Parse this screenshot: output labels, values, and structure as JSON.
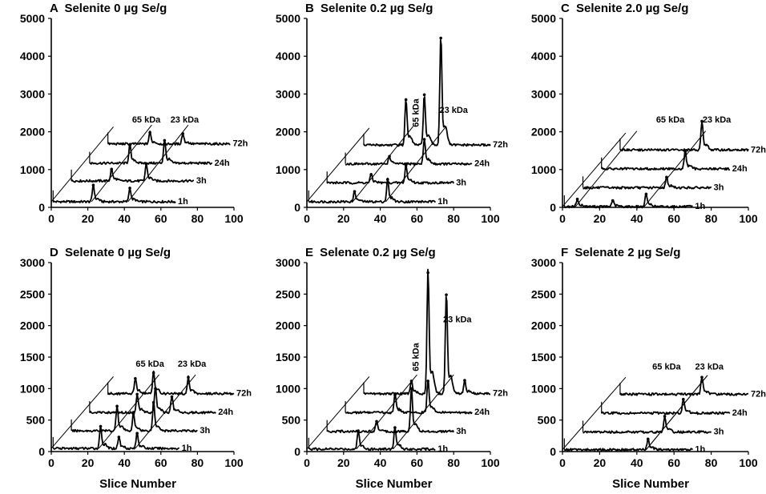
{
  "figure": {
    "x_axis_title": "Slice Number"
  },
  "chart_data": [
    {
      "type": "line",
      "id": "A",
      "letter": "A",
      "title": "Selenite 0 µg Se/g",
      "xlim": [
        0,
        100
      ],
      "ylim": [
        0,
        5000
      ],
      "xticks": [
        0,
        20,
        40,
        60,
        80,
        100
      ],
      "yticks": [
        0,
        1000,
        2000,
        3000,
        4000,
        5000
      ],
      "xlabel": "",
      "ylabel": "",
      "series": [
        {
          "name": "1h",
          "offset_x": 0,
          "baseline": 150,
          "start": 1,
          "end": 68,
          "peaks": [
            {
              "x": 23,
              "y": 590
            },
            {
              "x": 43,
              "y": 510
            }
          ]
        },
        {
          "name": "3h",
          "offset_x": 10,
          "baseline": 700,
          "start": 11,
          "end": 78,
          "peaks": [
            {
              "x": 33,
              "y": 1010
            },
            {
              "x": 52,
              "y": 1150
            }
          ]
        },
        {
          "name": "24h",
          "offset_x": 20,
          "baseline": 1170,
          "start": 21,
          "end": 88,
          "peaks": [
            {
              "x": 43,
              "y": 1650
            },
            {
              "x": 62,
              "y": 1770
            }
          ]
        },
        {
          "name": "72h",
          "offset_x": 30,
          "baseline": 1680,
          "start": 31,
          "end": 98,
          "peaks": [
            {
              "x": 54,
              "y": 1980
            },
            {
              "x": 72,
              "y": 1950
            }
          ]
        }
      ],
      "annotations": [
        {
          "text": "65 kDa",
          "x": 52,
          "y": 2250
        },
        {
          "text": "23 kDa",
          "x": 73,
          "y": 2250
        }
      ]
    },
    {
      "type": "line",
      "id": "B",
      "letter": "B",
      "title": "Selenite 0.2 µg Se/g",
      "xlim": [
        0,
        100
      ],
      "ylim": [
        0,
        5000
      ],
      "xticks": [
        0,
        20,
        40,
        60,
        80,
        100
      ],
      "yticks": [
        0,
        1000,
        2000,
        3000,
        4000,
        5000
      ],
      "xlabel": "",
      "ylabel": "",
      "series": [
        {
          "name": "1h",
          "offset_x": 0,
          "baseline": 150,
          "start": 1,
          "end": 70,
          "peaks": [
            {
              "x": 26,
              "y": 420
            },
            {
              "x": 44,
              "y": 740
            }
          ]
        },
        {
          "name": "3h",
          "offset_x": 10,
          "baseline": 650,
          "start": 11,
          "end": 80,
          "peaks": [
            {
              "x": 35,
              "y": 870
            },
            {
              "x": 54,
              "y": 1110
            }
          ]
        },
        {
          "name": "24h",
          "offset_x": 20,
          "baseline": 1150,
          "start": 21,
          "end": 90,
          "peaks": [
            {
              "x": 45,
              "y": 1350
            },
            {
              "x": 64,
              "y": 1800
            }
          ]
        },
        {
          "name": "72h",
          "offset_x": 30,
          "baseline": 1650,
          "start": 31,
          "end": 100,
          "peaks": [
            {
              "x": 54,
              "y": 2850
            },
            {
              "x": 64,
              "y": 2980
            },
            {
              "x": 73,
              "y": 4480
            }
          ]
        }
      ],
      "annotations": [
        {
          "text": "65 kDa",
          "x": 61,
          "y": 2500,
          "rotate": -90
        },
        {
          "text": "23 kDa",
          "x": 80,
          "y": 2500
        }
      ]
    },
    {
      "type": "line",
      "id": "C",
      "letter": "C",
      "title": "Selenite 2.0 µg Se/g",
      "xlim": [
        0,
        100
      ],
      "ylim": [
        0,
        5000
      ],
      "xticks": [
        0,
        20,
        40,
        60,
        80,
        100
      ],
      "yticks": [
        0,
        1000,
        2000,
        3000,
        4000,
        5000
      ],
      "xlabel": "",
      "ylabel": "",
      "series": [
        {
          "name": "1h",
          "offset_x": 0,
          "baseline": 20,
          "start": 1,
          "end": 70,
          "peaks": [
            {
              "x": 8,
              "y": 220
            },
            {
              "x": 27,
              "y": 180
            },
            {
              "x": 45,
              "y": 350
            }
          ]
        },
        {
          "name": "3h",
          "offset_x": 10,
          "baseline": 520,
          "start": 11,
          "end": 80,
          "peaks": [
            {
              "x": 56,
              "y": 800
            }
          ]
        },
        {
          "name": "24h",
          "offset_x": 20,
          "baseline": 1020,
          "start": 21,
          "end": 90,
          "peaks": [
            {
              "x": 66,
              "y": 1480
            }
          ]
        },
        {
          "name": "72h",
          "offset_x": 30,
          "baseline": 1520,
          "start": 31,
          "end": 100,
          "peaks": [
            {
              "x": 75,
              "y": 2280
            }
          ]
        }
      ],
      "annotations": [
        {
          "text": "65 kDa",
          "x": 58,
          "y": 2250
        },
        {
          "text": "23 kDa",
          "x": 83,
          "y": 2250
        }
      ]
    },
    {
      "type": "line",
      "id": "D",
      "letter": "D",
      "title": "Selenate 0 µg Se/g",
      "xlim": [
        0,
        100
      ],
      "ylim": [
        0,
        3000
      ],
      "xticks": [
        0,
        20,
        40,
        60,
        80,
        100
      ],
      "yticks": [
        0,
        500,
        1000,
        1500,
        2000,
        2500,
        3000
      ],
      "xlabel": "Slice Number",
      "ylabel": "",
      "series": [
        {
          "name": "1h",
          "offset_x": 0,
          "baseline": 50,
          "start": 1,
          "end": 70,
          "peaks": [
            {
              "x": 27,
              "y": 400
            },
            {
              "x": 37,
              "y": 230
            },
            {
              "x": 47,
              "y": 290
            }
          ]
        },
        {
          "name": "3h",
          "offset_x": 10,
          "baseline": 330,
          "start": 11,
          "end": 80,
          "peaks": [
            {
              "x": 36,
              "y": 720
            },
            {
              "x": 45,
              "y": 600
            },
            {
              "x": 56,
              "y": 780
            }
          ]
        },
        {
          "name": "24h",
          "offset_x": 20,
          "baseline": 620,
          "start": 21,
          "end": 90,
          "peaks": [
            {
              "x": 47,
              "y": 910
            },
            {
              "x": 57,
              "y": 1000
            },
            {
              "x": 66,
              "y": 870
            }
          ]
        },
        {
          "name": "72h",
          "offset_x": 30,
          "baseline": 920,
          "start": 31,
          "end": 100,
          "peaks": [
            {
              "x": 46,
              "y": 1160
            },
            {
              "x": 56,
              "y": 1250
            },
            {
              "x": 75,
              "y": 1180
            }
          ]
        }
      ],
      "annotations": [
        {
          "text": "65 kDa",
          "x": 54,
          "y": 1350
        },
        {
          "text": "23 kDa",
          "x": 77,
          "y": 1350
        }
      ]
    },
    {
      "type": "line",
      "id": "E",
      "letter": "E",
      "title": "Selenate 0.2 µg Se/g",
      "xlim": [
        0,
        100
      ],
      "ylim": [
        0,
        3000
      ],
      "xticks": [
        0,
        20,
        40,
        60,
        80,
        100
      ],
      "yticks": [
        0,
        500,
        1000,
        1500,
        2000,
        2500,
        3000
      ],
      "xlabel": "Slice Number",
      "ylabel": "",
      "series": [
        {
          "name": "1h",
          "offset_x": 0,
          "baseline": 40,
          "start": 1,
          "end": 70,
          "peaks": [
            {
              "x": 28,
              "y": 330
            },
            {
              "x": 48,
              "y": 380
            }
          ]
        },
        {
          "name": "3h",
          "offset_x": 10,
          "baseline": 320,
          "start": 11,
          "end": 80,
          "peaks": [
            {
              "x": 38,
              "y": 480
            },
            {
              "x": 57,
              "y": 1000
            }
          ]
        },
        {
          "name": "24h",
          "offset_x": 20,
          "baseline": 620,
          "start": 21,
          "end": 90,
          "peaks": [
            {
              "x": 48,
              "y": 900
            },
            {
              "x": 66,
              "y": 1120
            }
          ]
        },
        {
          "name": "72h",
          "offset_x": 30,
          "baseline": 920,
          "start": 31,
          "end": 100,
          "peaks": [
            {
              "x": 57,
              "y": 1120
            },
            {
              "x": 66,
              "y": 2840
            },
            {
              "x": 76,
              "y": 2490
            },
            {
              "x": 86,
              "y": 1130
            }
          ]
        }
      ],
      "annotations": [
        {
          "text": "65 kDa",
          "x": 61,
          "y": 1500,
          "rotate": -90
        },
        {
          "text": "23 kDa",
          "x": 82,
          "y": 2050
        }
      ]
    },
    {
      "type": "line",
      "id": "F",
      "letter": "F",
      "title": "Selenate 2 µg Se/g",
      "xlim": [
        0,
        100
      ],
      "ylim": [
        0,
        3000
      ],
      "xticks": [
        0,
        20,
        40,
        60,
        80,
        100
      ],
      "yticks": [
        0,
        500,
        1000,
        1500,
        2000,
        2500,
        3000
      ],
      "xlabel": "Slice Number",
      "ylabel": "",
      "series": [
        {
          "name": "1h",
          "offset_x": 0,
          "baseline": 30,
          "start": 1,
          "end": 70,
          "peaks": [
            {
              "x": 46,
              "y": 200
            }
          ]
        },
        {
          "name": "3h",
          "offset_x": 10,
          "baseline": 310,
          "start": 11,
          "end": 80,
          "peaks": [
            {
              "x": 55,
              "y": 560
            }
          ]
        },
        {
          "name": "24h",
          "offset_x": 20,
          "baseline": 610,
          "start": 21,
          "end": 90,
          "peaks": [
            {
              "x": 65,
              "y": 830
            }
          ]
        },
        {
          "name": "72h",
          "offset_x": 30,
          "baseline": 910,
          "start": 31,
          "end": 100,
          "peaks": [
            {
              "x": 75,
              "y": 1180
            }
          ]
        }
      ],
      "annotations": [
        {
          "text": "65 kDa",
          "x": 56,
          "y": 1300
        },
        {
          "text": "23 kDa",
          "x": 79,
          "y": 1300
        }
      ]
    }
  ]
}
